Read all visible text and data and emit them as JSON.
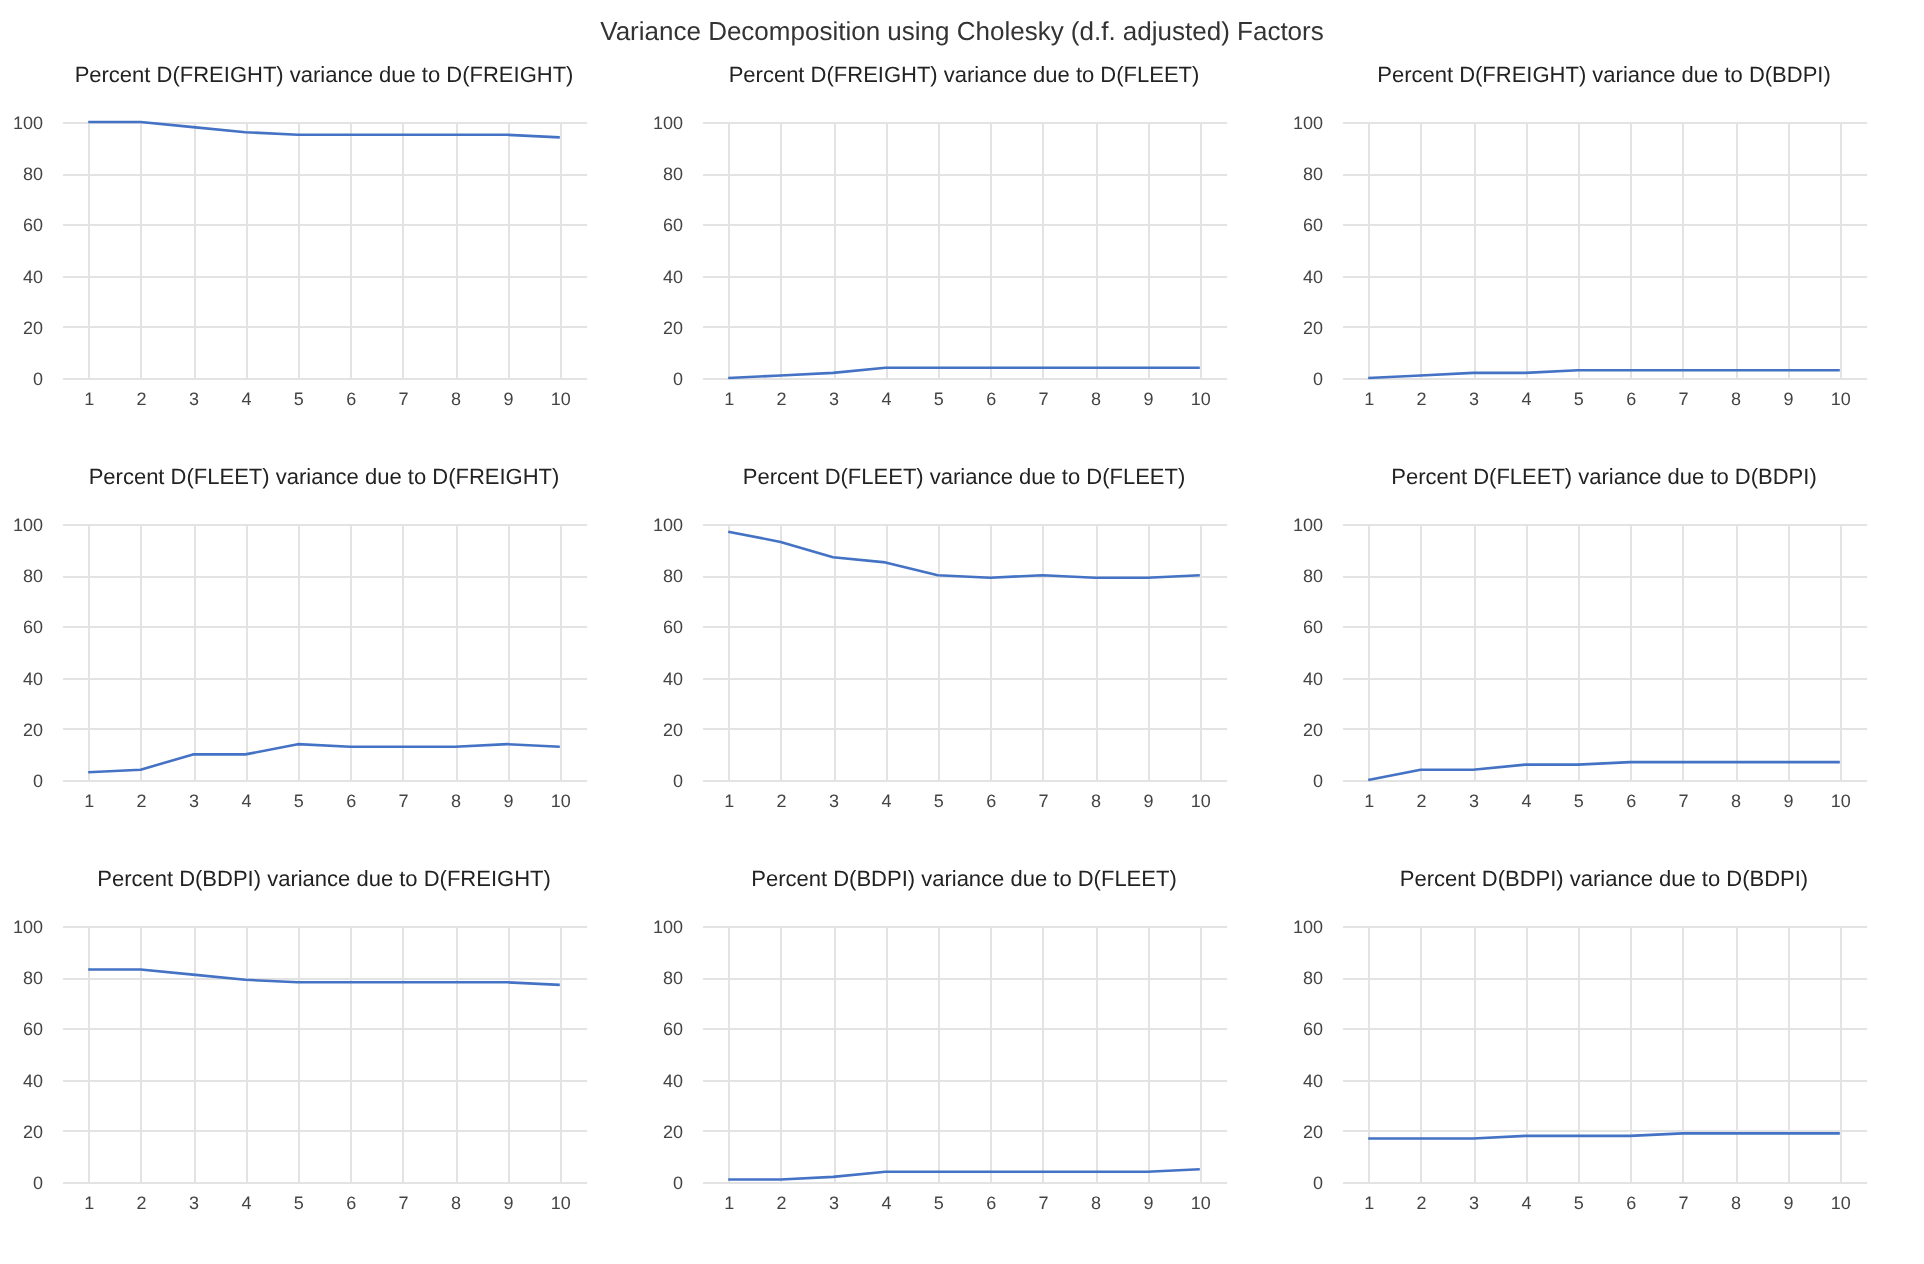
{
  "chart_data": [
    {
      "type": "other",
      "title": "Variance Decomposition using Cholesky (d.f. adjusted) Factors"
    },
    {
      "type": "line",
      "title": "Percent D(FREIGHT) variance due to D(FREIGHT)",
      "categories": [
        "1",
        "2",
        "3",
        "4",
        "5",
        "6",
        "7",
        "8",
        "9",
        "10"
      ],
      "values": [
        100,
        100,
        98,
        96,
        95,
        95,
        95,
        95,
        95,
        94
      ],
      "color": "#4472c4",
      "ylim": [
        0,
        100
      ],
      "yticks": [
        0,
        20,
        40,
        60,
        80,
        100
      ],
      "grid": true
    },
    {
      "type": "line",
      "title": "Percent D(FREIGHT) variance due to D(FLEET)",
      "categories": [
        "1",
        "2",
        "3",
        "4",
        "5",
        "6",
        "7",
        "8",
        "9",
        "10"
      ],
      "values": [
        0,
        1,
        2,
        4,
        4,
        4,
        4,
        4,
        4,
        4
      ],
      "color": "#4472c4",
      "ylim": [
        0,
        100
      ],
      "yticks": [
        0,
        20,
        40,
        60,
        80,
        100
      ],
      "grid": true
    },
    {
      "type": "line",
      "title": "Percent D(FREIGHT) variance due to D(BDPI)",
      "categories": [
        "1",
        "2",
        "3",
        "4",
        "5",
        "6",
        "7",
        "8",
        "9",
        "10"
      ],
      "values": [
        0,
        1,
        2,
        2,
        3,
        3,
        3,
        3,
        3,
        3
      ],
      "color": "#4472c4",
      "ylim": [
        0,
        100
      ],
      "yticks": [
        0,
        20,
        40,
        60,
        80,
        100
      ],
      "grid": true
    },
    {
      "type": "line",
      "title": "Percent D(FLEET) variance due to D(FREIGHT)",
      "categories": [
        "1",
        "2",
        "3",
        "4",
        "5",
        "6",
        "7",
        "8",
        "9",
        "10"
      ],
      "values": [
        3,
        4,
        10,
        10,
        14,
        13,
        13,
        13,
        14,
        13
      ],
      "color": "#4472c4",
      "ylim": [
        0,
        100
      ],
      "yticks": [
        0,
        20,
        40,
        60,
        80,
        100
      ],
      "grid": true
    },
    {
      "type": "line",
      "title": "Percent D(FLEET) variance due to D(FLEET)",
      "categories": [
        "1",
        "2",
        "3",
        "4",
        "5",
        "6",
        "7",
        "8",
        "9",
        "10"
      ],
      "values": [
        97,
        93,
        87,
        85,
        80,
        79,
        80,
        79,
        79,
        80
      ],
      "color": "#4472c4",
      "ylim": [
        0,
        100
      ],
      "yticks": [
        0,
        20,
        40,
        60,
        80,
        100
      ],
      "grid": true
    },
    {
      "type": "line",
      "title": "Percent D(FLEET) variance due to D(BDPI)",
      "categories": [
        "1",
        "2",
        "3",
        "4",
        "5",
        "6",
        "7",
        "8",
        "9",
        "10"
      ],
      "values": [
        0,
        4,
        4,
        6,
        6,
        7,
        7,
        7,
        7,
        7
      ],
      "color": "#4472c4",
      "ylim": [
        0,
        100
      ],
      "yticks": [
        0,
        20,
        40,
        60,
        80,
        100
      ],
      "grid": true
    },
    {
      "type": "line",
      "title": "Percent D(BDPI) variance due to D(FREIGHT)",
      "categories": [
        "1",
        "2",
        "3",
        "4",
        "5",
        "6",
        "7",
        "8",
        "9",
        "10"
      ],
      "values": [
        83,
        83,
        81,
        79,
        78,
        78,
        78,
        78,
        78,
        77
      ],
      "color": "#4472c4",
      "ylim": [
        0,
        100
      ],
      "yticks": [
        0,
        20,
        40,
        60,
        80,
        100
      ],
      "grid": true
    },
    {
      "type": "line",
      "title": "Percent D(BDPI) variance due to D(FLEET)",
      "categories": [
        "1",
        "2",
        "3",
        "4",
        "5",
        "6",
        "7",
        "8",
        "9",
        "10"
      ],
      "values": [
        1,
        1,
        2,
        4,
        4,
        4,
        4,
        4,
        4,
        5
      ],
      "color": "#4472c4",
      "ylim": [
        0,
        100
      ],
      "yticks": [
        0,
        20,
        40,
        60,
        80,
        100
      ],
      "grid": true
    },
    {
      "type": "line",
      "title": "Percent D(BDPI) variance due to D(BDPI)",
      "categories": [
        "1",
        "2",
        "3",
        "4",
        "5",
        "6",
        "7",
        "8",
        "9",
        "10"
      ],
      "values": [
        17,
        17,
        17,
        18,
        18,
        18,
        19,
        19,
        19,
        19
      ],
      "color": "#4472c4",
      "ylim": [
        0,
        100
      ],
      "yticks": [
        0,
        20,
        40,
        60,
        80,
        100
      ],
      "grid": true
    }
  ]
}
